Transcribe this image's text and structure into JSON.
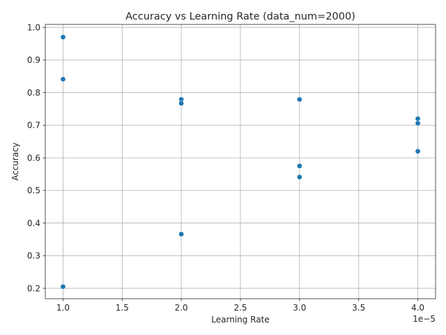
{
  "chart_data": {
    "type": "scatter",
    "title": "Accuracy vs Learning Rate (data_num=2000)",
    "xlabel": "Learning Rate",
    "ylabel": "Accuracy",
    "x_offset_label": "1e−5",
    "x_scale": 1e-05,
    "xlim": [
      0.85,
      4.15
    ],
    "ylim": [
      0.168,
      1.009
    ],
    "x_ticks": [
      1.0,
      1.5,
      2.0,
      2.5,
      3.0,
      3.5,
      4.0
    ],
    "x_tick_labels": [
      "1.0",
      "1.5",
      "2.0",
      "2.5",
      "3.0",
      "3.5",
      "4.0"
    ],
    "y_ticks": [
      0.2,
      0.3,
      0.4,
      0.5,
      0.6,
      0.7,
      0.8,
      0.9,
      1.0
    ],
    "y_tick_labels": [
      "0.2",
      "0.3",
      "0.4",
      "0.5",
      "0.6",
      "0.7",
      "0.8",
      "0.9",
      "1.0"
    ],
    "grid": true,
    "marker_color": "#1f77b4",
    "points": [
      {
        "x": 1e-05,
        "y": 0.97
      },
      {
        "x": 1e-05,
        "y": 0.841
      },
      {
        "x": 1e-05,
        "y": 0.205
      },
      {
        "x": 2e-05,
        "y": 0.779
      },
      {
        "x": 2e-05,
        "y": 0.767
      },
      {
        "x": 2e-05,
        "y": 0.366
      },
      {
        "x": 3e-05,
        "y": 0.779
      },
      {
        "x": 3e-05,
        "y": 0.575
      },
      {
        "x": 3e-05,
        "y": 0.541
      },
      {
        "x": 4e-05,
        "y": 0.72
      },
      {
        "x": 4e-05,
        "y": 0.706
      },
      {
        "x": 4e-05,
        "y": 0.62
      }
    ]
  }
}
